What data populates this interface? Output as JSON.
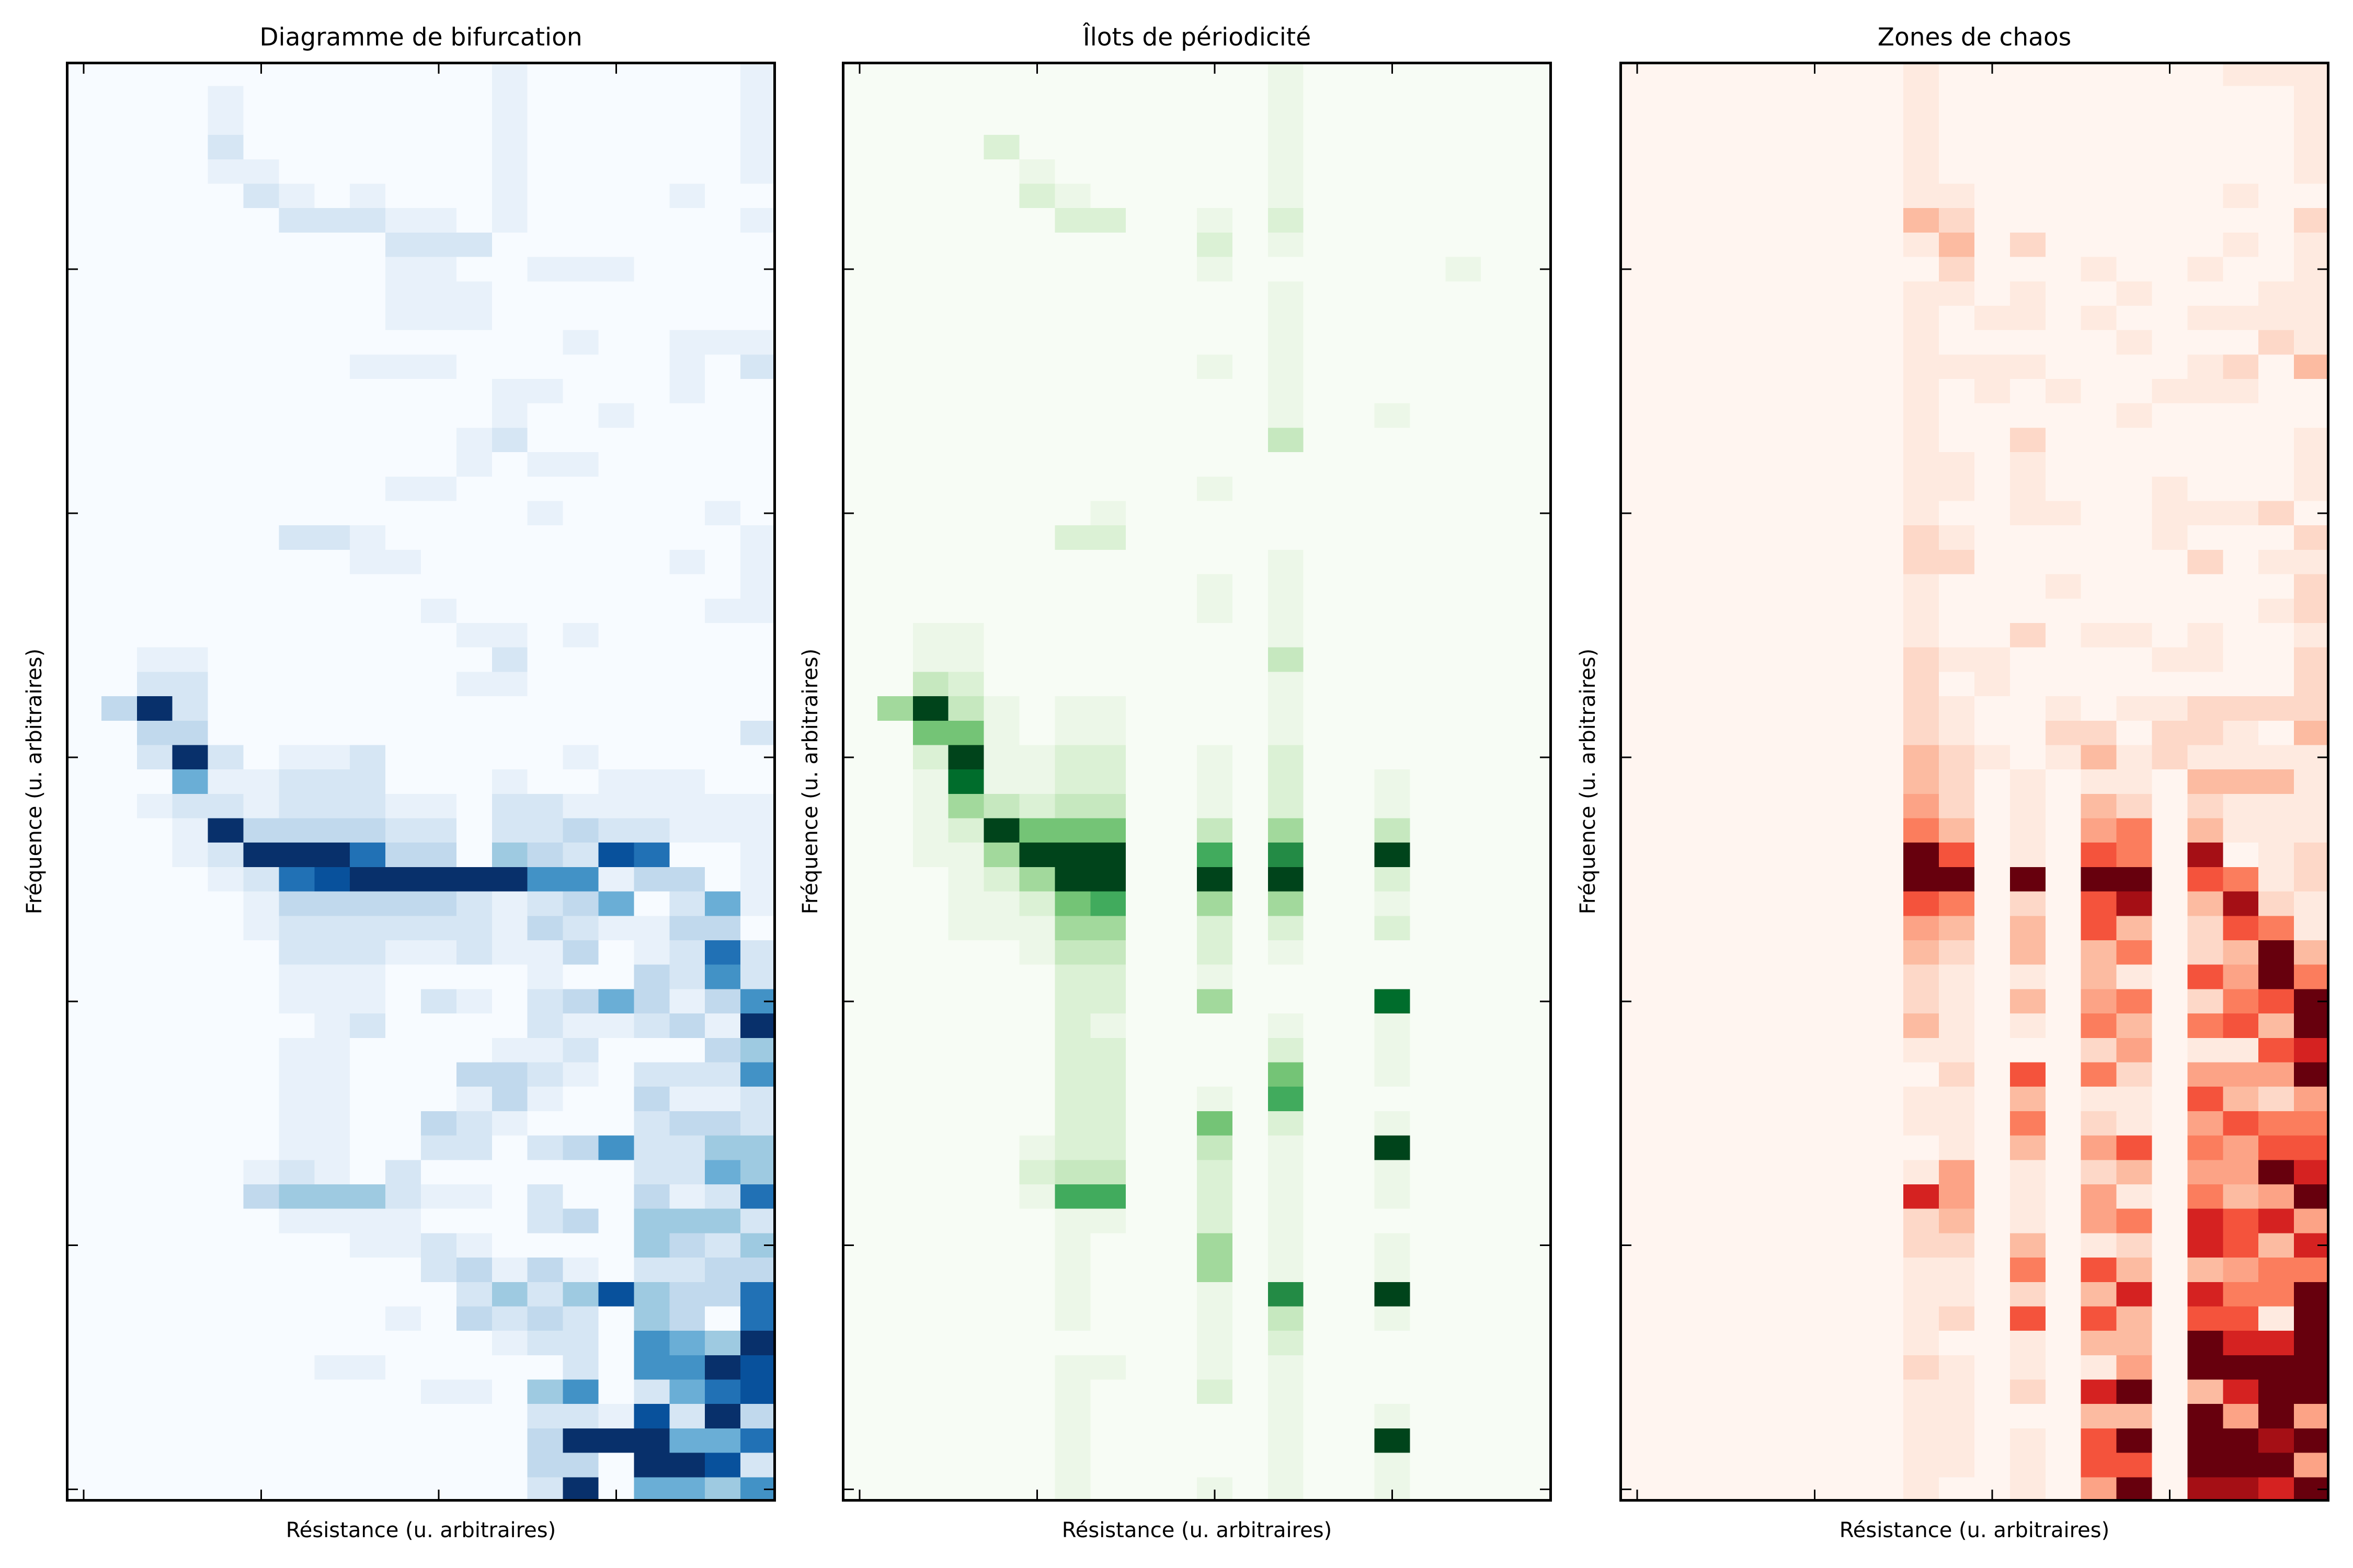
{
  "chart_data": [
    {
      "type": "heatmap",
      "title": "Diagramme de bifurcation",
      "xlabel": "Résistance (u. arbitraires)",
      "ylabel": "Fréquence (u. arbitraires)",
      "colormap": "Blues",
      "levels": [
        "#f7fbff",
        "#e8f1fa",
        "#d6e6f4",
        "#c1d9ed",
        "#9ecae1",
        "#6aaed6",
        "#4292c6",
        "#2171b5",
        "#08519c",
        "#08306b"
      ],
      "value_scale": "0-9 intensity levels, rows listed top to bottom, 20 columns",
      "origin": "lower",
      "xticks": [
        0,
        5,
        10,
        15
      ],
      "yticks": [
        0,
        10,
        20,
        30,
        40,
        50
      ],
      "rows": [
        "00000000000010000001",
        "00001000000010000001",
        "00001000000010000001",
        "00002000000010000001",
        "00001100000010000001",
        "00000210100010000100",
        "00000022211010000001",
        "00000000022200000000",
        "00000000011001110000",
        "00000000011100000000",
        "00000000011100000000",
        "00000000000000100111",
        "00000000111000000102",
        "00000000000011000100",
        "00000000000010010000",
        "00000000000120000000",
        "00000000000101100000",
        "00000000011000000000",
        "00000000000001000010",
        "00000022100000000001",
        "00000000110000000101",
        "00000000000000000001",
        "00000000001000000011",
        "00000000000110100000",
        "00110000000020000000",
        "00220000000110000000",
        "03920000000000000000",
        "00330000000000000002",
        "00292011200000100000",
        "00051122200010011100",
        "00122122211022111111",
        "00019333322022322111",
        "00012999733043287001",
        "00001278999996613301",
        "00000133333212350251",
        "00000122222213211330",
        "00000022211211301272",
        "00000011100001003262",
        "00000011102102353136",
        "00000001200002112319",
        "00000011000011200034",
        "00000011000332102226",
        "00000011000131003112",
        "00000011003210002332",
        "00000011002202362244",
        "00000121020000002254",
        "00000344421102003127",
        "00000011110002304442",
        "00000000112100004324",
        "00000000002313102233",
        "00000000000242484337",
        "00000000010323204307",
        "00000000000012206549",
        "00000001100000206698",
        "00000000001104602578",
        "00000000000002218293",
        "00000000000003999557",
        "00000000000003309982",
        "00000000000002905546"
      ]
    },
    {
      "type": "heatmap",
      "title": "Îlots de périodicité",
      "xlabel": "Résistance (u. arbitraires)",
      "ylabel": "Fréquence (u. arbitraires)",
      "colormap": "Greens",
      "levels": [
        "#f7fcf5",
        "#ecf7e8",
        "#dbf1d5",
        "#c6e8bf",
        "#a2d99c",
        "#74c476",
        "#41ab5d",
        "#238b45",
        "#006d2c",
        "#00441b"
      ],
      "value_scale": "0-9 intensity levels, rows listed top to bottom, 20 columns",
      "origin": "lower",
      "xticks": [
        0,
        5,
        10,
        15
      ],
      "yticks": [
        0,
        10,
        20,
        30,
        40,
        50
      ],
      "rows": [
        "00000000000010000000",
        "00000000000010000000",
        "00000000000010000000",
        "00002000000010000000",
        "00000100000010000000",
        "00000210000010000000",
        "00000022001020000000",
        "00000000002010000000",
        "00000000001000000100",
        "00000000000010000000",
        "00000000000010000000",
        "00000000000010000000",
        "00000000001010000000",
        "00000000000010000000",
        "00000000000010010000",
        "00000000000030000000",
        "00000000000000000000",
        "00000000001000000000",
        "00000001000000000000",
        "00000022000000000000",
        "00000000000010000000",
        "00000000001010000000",
        "00000000001010000000",
        "00110000000010000000",
        "00110000000030000000",
        "00320000000010000000",
        "04931011000010000000",
        "00551011000010000000",
        "00291122001020000000",
        "00181122001020010000",
        "00143233001020010000",
        "00129555003040030000",
        "00114999006070090000",
        "00012499009090020000",
        "00011256004040010000",
        "00011144002020020000",
        "00000133002010000000",
        "00000022001000000000",
        "00000022004000080000",
        "00000021000010010000",
        "00000022000020010000",
        "00000022000050010000",
        "00000022001060000000",
        "00000022005020010000",
        "00000122003010090000",
        "00000233002010010000",
        "00000166002010010000",
        "00000011002010000000",
        "00000010004010010000",
        "00000010004010010000",
        "00000010001070090000",
        "00000010001030010000",
        "00000000001020000000",
        "00000011001010000000",
        "00000010002010000000",
        "00000010000010010000",
        "00000010000010090000",
        "00000010000010010000",
        "00000010001010010000"
      ]
    },
    {
      "type": "heatmap",
      "title": "Zones de chaos",
      "xlabel": "Résistance (u. arbitraires)",
      "ylabel": "Fréquence (u. arbitraires)",
      "colormap": "Reds",
      "levels": [
        "#fff5f0",
        "#feeae0",
        "#fdd8c8",
        "#fcbba1",
        "#fca386",
        "#fb7d5d",
        "#f4533c",
        "#d52221",
        "#a50f15",
        "#67000d"
      ],
      "value_scale": "0-9 intensity levels, rows listed top to bottom, 20 columns",
      "origin": "lower",
      "xticks": [
        0,
        5,
        10,
        15
      ],
      "yticks": [
        0,
        10,
        20,
        30,
        40,
        50
      ],
      "rows": [
        "00000000100000000111",
        "00000000100000000001",
        "00000000100000000001",
        "00000000100000000001",
        "00000000100000000001",
        "00000000110000000100",
        "00000000320000000002",
        "00000000130200000101",
        "00000000020001001001",
        "00000000110100100011",
        "00000000101101001111",
        "00000000100000100021",
        "00000000111100001203",
        "00000000101010011100",
        "00000000100000100000",
        "00000000100200000001",
        "00000000110100000001",
        "00000000110100010001",
        "00000000100110011120",
        "00000000210000010002",
        "00000000220000002011",
        "00000000100010000002",
        "00000000100000000012",
        "00000000100201101001",
        "00000000211000011002",
        "00000000201000000002",
        "00000000210010112222",
        "00000000210022022103",
        "00000000321013121111",
        "00000000320101103331",
        "00000000420103202111",
        "00000000530104503111",
        "00000000960106508012",
        "00000000990909906512",
        "00000000650206803821",
        "00000000430306302651",
        "00000000320303502393",
        "00000000210103106495",
        "00000000210304502569",
        "00000000310105305639",
        "00000000110002401167",
        "00000000020605204449",
        "00000000110301106324",
        "00000000110502104655",
        "00000000010304605466",
        "00000000140102304497",
        "00000000740104105349",
        "00000000230104507674",
        "00000000220301207637",
        "00000000110506303455",
        "00000000110203707559",
        "00000000120606306619",
        "00000000100103309779",
        "00000000210101409999",
        "00000000110207903799",
        "00000000110003309494",
        "00000000110106909989",
        "00000000110106609994",
        "00000000100104908879"
      ]
    }
  ]
}
